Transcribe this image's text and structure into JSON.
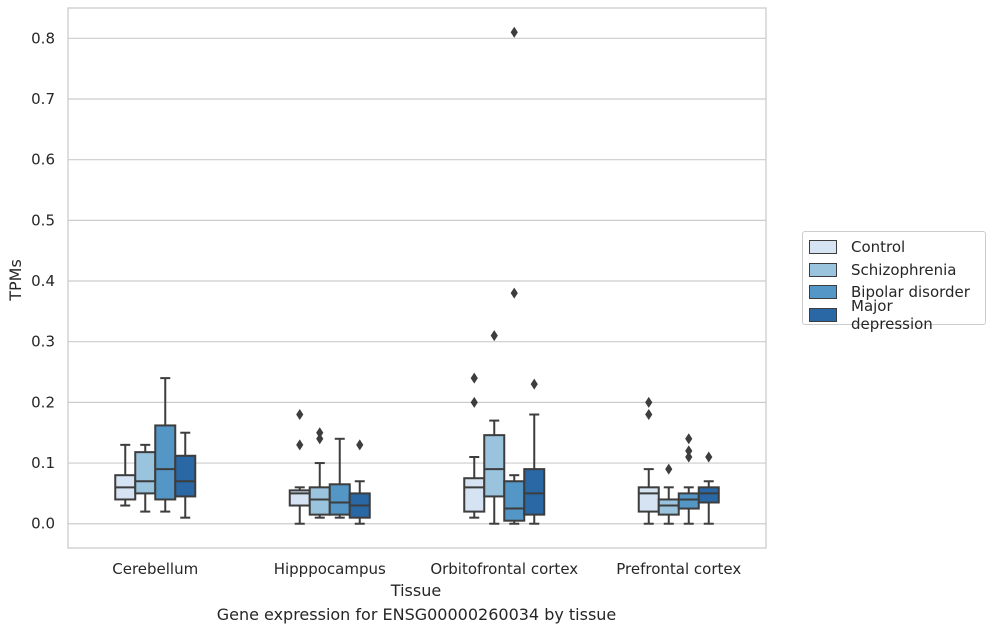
{
  "chart_data": {
    "type": "box",
    "xlabel": "Tissue",
    "ylabel": "TPMs",
    "caption": "Gene expression for ENSG00000260034 by tissue",
    "categories": [
      "Cerebellum",
      "Hipppocampus",
      "Orbitofrontal cortex",
      "Prefrontal cortex"
    ],
    "ylim": [
      -0.04,
      0.85
    ],
    "yticks": [
      "0.0",
      "0.1",
      "0.2",
      "0.3",
      "0.4",
      "0.5",
      "0.6",
      "0.7",
      "0.8"
    ],
    "grid": true,
    "legend_position": "outside right",
    "series": [
      {
        "name": "Control",
        "color": "#d5e3f2",
        "boxes": [
          {
            "whislo": 0.03,
            "q1": 0.04,
            "med": 0.06,
            "q3": 0.08,
            "whishi": 0.13,
            "fliers": []
          },
          {
            "whislo": 0.0,
            "q1": 0.03,
            "med": 0.05,
            "q3": 0.055,
            "whishi": 0.06,
            "fliers": [
              0.13,
              0.18
            ]
          },
          {
            "whislo": 0.01,
            "q1": 0.02,
            "med": 0.06,
            "q3": 0.075,
            "whishi": 0.11,
            "fliers": [
              0.2,
              0.24
            ]
          },
          {
            "whislo": 0.0,
            "q1": 0.02,
            "med": 0.05,
            "q3": 0.06,
            "whishi": 0.09,
            "fliers": [
              0.18,
              0.2
            ]
          }
        ]
      },
      {
        "name": "Schizophrenia",
        "color": "#9ac3de",
        "boxes": [
          {
            "whislo": 0.02,
            "q1": 0.05,
            "med": 0.07,
            "q3": 0.118,
            "whishi": 0.13,
            "fliers": []
          },
          {
            "whislo": 0.01,
            "q1": 0.015,
            "med": 0.04,
            "q3": 0.06,
            "whishi": 0.1,
            "fliers": [
              0.14,
              0.15
            ]
          },
          {
            "whislo": 0.0,
            "q1": 0.045,
            "med": 0.09,
            "q3": 0.146,
            "whishi": 0.17,
            "fliers": [
              0.31
            ]
          },
          {
            "whislo": 0.0,
            "q1": 0.015,
            "med": 0.03,
            "q3": 0.04,
            "whishi": 0.06,
            "fliers": [
              0.09
            ]
          }
        ]
      },
      {
        "name": "Bipolar disorder",
        "color": "#5496c5",
        "boxes": [
          {
            "whislo": 0.02,
            "q1": 0.04,
            "med": 0.09,
            "q3": 0.162,
            "whishi": 0.24,
            "fliers": []
          },
          {
            "whislo": 0.01,
            "q1": 0.015,
            "med": 0.035,
            "q3": 0.065,
            "whishi": 0.14,
            "fliers": []
          },
          {
            "whislo": 0.0,
            "q1": 0.005,
            "med": 0.025,
            "q3": 0.07,
            "whishi": 0.08,
            "fliers": [
              0.38,
              0.81
            ]
          },
          {
            "whislo": 0.0,
            "q1": 0.025,
            "med": 0.04,
            "q3": 0.05,
            "whishi": 0.06,
            "fliers": [
              0.11,
              0.12,
              0.14
            ]
          }
        ]
      },
      {
        "name": "Major depression",
        "color": "#2a67a5",
        "boxes": [
          {
            "whislo": 0.01,
            "q1": 0.045,
            "med": 0.07,
            "q3": 0.112,
            "whishi": 0.15,
            "fliers": []
          },
          {
            "whislo": 0.0,
            "q1": 0.01,
            "med": 0.03,
            "q3": 0.05,
            "whishi": 0.07,
            "fliers": [
              0.13
            ]
          },
          {
            "whislo": 0.0,
            "q1": 0.015,
            "med": 0.05,
            "q3": 0.09,
            "whishi": 0.18,
            "fliers": [
              0.23
            ]
          },
          {
            "whislo": 0.0,
            "q1": 0.035,
            "med": 0.05,
            "q3": 0.06,
            "whishi": 0.07,
            "fliers": [
              0.11
            ]
          }
        ]
      }
    ]
  }
}
